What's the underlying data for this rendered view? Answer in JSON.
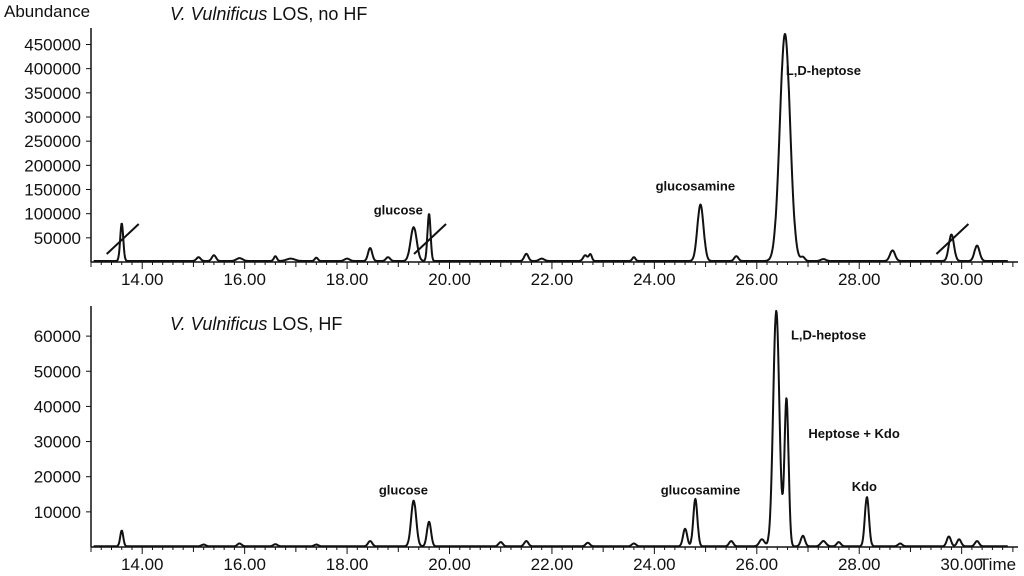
{
  "chart_data": [
    {
      "type": "line",
      "title": "V. Vulnificus LOS, no HF",
      "title_italic": "V. Vulnificus",
      "title_rest": " LOS, no HF",
      "ylabel": "Abundance",
      "xlabel": "",
      "xlim": [
        13.0,
        31.1
      ],
      "ylim": [
        0,
        480000
      ],
      "xticks": [
        14,
        16,
        18,
        20,
        22,
        24,
        26,
        28,
        30
      ],
      "xtick_labels": [
        "14.00",
        "16.00",
        "18.00",
        "20.00",
        "22.00",
        "24.00",
        "26.00",
        "28.00",
        "30.00"
      ],
      "yticks": [
        50000,
        100000,
        150000,
        200000,
        250000,
        300000,
        350000,
        400000,
        450000
      ],
      "ytick_labels": [
        "50000",
        "100000",
        "150000",
        "200000",
        "250000",
        "300000",
        "350000",
        "400000",
        "450000"
      ],
      "baseline": 2000,
      "peaks": [
        {
          "x": 13.6,
          "y": 78000,
          "w": 0.03
        },
        {
          "x": 15.1,
          "y": 8000,
          "w": 0.04
        },
        {
          "x": 15.4,
          "y": 12000,
          "w": 0.04
        },
        {
          "x": 15.9,
          "y": 6000,
          "w": 0.06
        },
        {
          "x": 16.6,
          "y": 10000,
          "w": 0.03
        },
        {
          "x": 16.9,
          "y": 5000,
          "w": 0.08
        },
        {
          "x": 17.4,
          "y": 7000,
          "w": 0.03
        },
        {
          "x": 18.0,
          "y": 5000,
          "w": 0.05
        },
        {
          "x": 18.45,
          "y": 27000,
          "w": 0.04
        },
        {
          "x": 18.8,
          "y": 8000,
          "w": 0.04
        },
        {
          "x": 19.3,
          "y": 70000,
          "w": 0.06
        },
        {
          "x": 19.6,
          "y": 98000,
          "w": 0.03
        },
        {
          "x": 21.5,
          "y": 15000,
          "w": 0.04
        },
        {
          "x": 21.8,
          "y": 5000,
          "w": 0.05
        },
        {
          "x": 22.65,
          "y": 12000,
          "w": 0.04
        },
        {
          "x": 22.75,
          "y": 14000,
          "w": 0.03
        },
        {
          "x": 23.6,
          "y": 8000,
          "w": 0.03
        },
        {
          "x": 24.9,
          "y": 117000,
          "w": 0.06
        },
        {
          "x": 25.6,
          "y": 10000,
          "w": 0.04
        },
        {
          "x": 26.55,
          "y": 470000,
          "w": 0.1
        },
        {
          "x": 26.9,
          "y": 8000,
          "w": 0.04
        },
        {
          "x": 27.3,
          "y": 4000,
          "w": 0.05
        },
        {
          "x": 28.65,
          "y": 22000,
          "w": 0.05
        },
        {
          "x": 29.8,
          "y": 55000,
          "w": 0.05
        },
        {
          "x": 30.3,
          "y": 32000,
          "w": 0.05
        }
      ],
      "annotations": [
        {
          "text": "glucose",
          "x": 19.0,
          "y": 98000
        },
        {
          "text": "glucosamine",
          "x": 24.8,
          "y": 148000
        },
        {
          "text": "L,D-heptose",
          "x": 27.3,
          "y": 387000
        }
      ],
      "off_scale_marks": [
        13.6,
        19.6,
        29.8
      ]
    },
    {
      "type": "line",
      "title": "V. Vulnificus LOS, HF",
      "title_italic": "V. Vulnificus",
      "title_rest": " LOS, HF",
      "ylabel": "",
      "xlabel": "Time",
      "xlim": [
        13.0,
        31.1
      ],
      "ylim": [
        0,
        68000
      ],
      "xticks": [
        14,
        16,
        18,
        20,
        22,
        24,
        26,
        28,
        30
      ],
      "xtick_labels": [
        "14.00",
        "16.00",
        "18.00",
        "20.00",
        "22.00",
        "24.00",
        "26.00",
        "28.00",
        "30.00"
      ],
      "yticks": [
        10000,
        20000,
        30000,
        40000,
        50000,
        60000
      ],
      "ytick_labels": [
        "10000",
        "20000",
        "30000",
        "40000",
        "50000",
        "60000"
      ],
      "baseline": 200,
      "peaks": [
        {
          "x": 13.6,
          "y": 4500,
          "w": 0.03
        },
        {
          "x": 15.2,
          "y": 500,
          "w": 0.04
        },
        {
          "x": 15.9,
          "y": 800,
          "w": 0.04
        },
        {
          "x": 16.6,
          "y": 600,
          "w": 0.04
        },
        {
          "x": 17.4,
          "y": 500,
          "w": 0.04
        },
        {
          "x": 18.45,
          "y": 1500,
          "w": 0.04
        },
        {
          "x": 19.3,
          "y": 13000,
          "w": 0.05
        },
        {
          "x": 19.6,
          "y": 7000,
          "w": 0.04
        },
        {
          "x": 21.0,
          "y": 1200,
          "w": 0.04
        },
        {
          "x": 21.5,
          "y": 1500,
          "w": 0.04
        },
        {
          "x": 22.7,
          "y": 1000,
          "w": 0.04
        },
        {
          "x": 23.6,
          "y": 800,
          "w": 0.04
        },
        {
          "x": 24.6,
          "y": 5000,
          "w": 0.04
        },
        {
          "x": 24.8,
          "y": 13500,
          "w": 0.04
        },
        {
          "x": 25.5,
          "y": 1500,
          "w": 0.04
        },
        {
          "x": 26.1,
          "y": 2000,
          "w": 0.05
        },
        {
          "x": 26.38,
          "y": 67000,
          "w": 0.06
        },
        {
          "x": 26.58,
          "y": 42000,
          "w": 0.04
        },
        {
          "x": 26.9,
          "y": 3000,
          "w": 0.04
        },
        {
          "x": 27.3,
          "y": 1500,
          "w": 0.05
        },
        {
          "x": 27.6,
          "y": 1200,
          "w": 0.04
        },
        {
          "x": 28.15,
          "y": 14000,
          "w": 0.04
        },
        {
          "x": 28.8,
          "y": 800,
          "w": 0.04
        },
        {
          "x": 29.75,
          "y": 2800,
          "w": 0.04
        },
        {
          "x": 29.95,
          "y": 2000,
          "w": 0.04
        },
        {
          "x": 30.3,
          "y": 1500,
          "w": 0.04
        }
      ],
      "annotations": [
        {
          "text": "glucose",
          "x": 19.1,
          "y": 15000
        },
        {
          "text": "glucosamine",
          "x": 24.9,
          "y": 15000
        },
        {
          "text": "L,D-heptose",
          "x": 27.4,
          "y": 59000
        },
        {
          "text": "Heptose + Kdo",
          "x": 27.9,
          "y": 31000
        },
        {
          "text": "Kdo",
          "x": 28.1,
          "y": 16000
        }
      ],
      "off_scale_marks": []
    }
  ]
}
